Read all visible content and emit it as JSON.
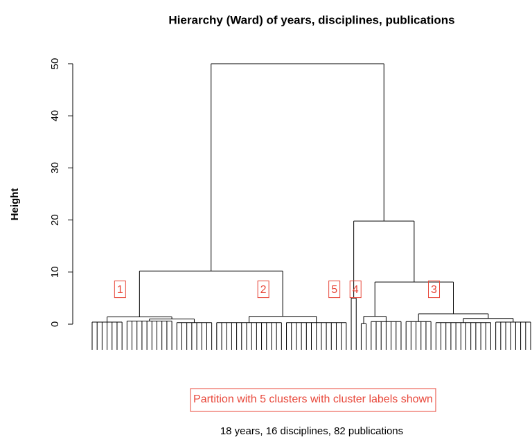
{
  "chart_data": {
    "type": "dendrogram",
    "title": "Hierarchy (Ward) of years, disciplines, publications",
    "ylabel": "Height",
    "ylim": [
      0,
      50
    ],
    "yticks": [
      0,
      10,
      20,
      30,
      40,
      50
    ],
    "line_color": "#000000",
    "label_color": "#e8473a",
    "annotation": "Partition with 5 clusters with cluster labels shown",
    "subtitle": "18 years, 16 disciplines, 82 publications",
    "tree": {
      "height": 50,
      "children": [
        {
          "height": 10.2,
          "children": [
            {
              "height": 1.4,
              "label": "1",
              "children": [
                {
                  "height": 0.4,
                  "leaves": 7
                },
                {
                  "height": 1.0,
                  "children": [
                    {
                      "height": 0.6,
                      "leaves": 10
                    },
                    {
                      "height": 0.3,
                      "leaves": 8
                    }
                  ]
                }
              ]
            },
            {
              "height": 1.5,
              "label": "2",
              "children": [
                {
                  "height": 0.3,
                  "leaves": 14
                },
                {
                  "height": 0.3,
                  "leaves": 13
                }
              ]
            }
          ]
        },
        {
          "height": 19.8,
          "children": [
            {
              "height": 5,
              "label": "5",
              "leaves": 2
            },
            {
              "height": 8.1,
              "children": [
                {
                  "height": 1.5,
                  "label": "4",
                  "children": [
                    {
                      "height": 0.1,
                      "leaves": 2
                    },
                    {
                      "height": 0.5,
                      "leaves": 7
                    }
                  ]
                },
                {
                  "height": 2.0,
                  "label": "3",
                  "children": [
                    {
                      "height": 0.5,
                      "leaves": 6
                    },
                    {
                      "height": 1.1,
                      "children": [
                        {
                          "height": 0.3,
                          "leaves": 12
                        },
                        {
                          "height": 0.4,
                          "leaves": 8
                        }
                      ]
                    }
                  ]
                }
              ]
            }
          ]
        }
      ]
    }
  }
}
